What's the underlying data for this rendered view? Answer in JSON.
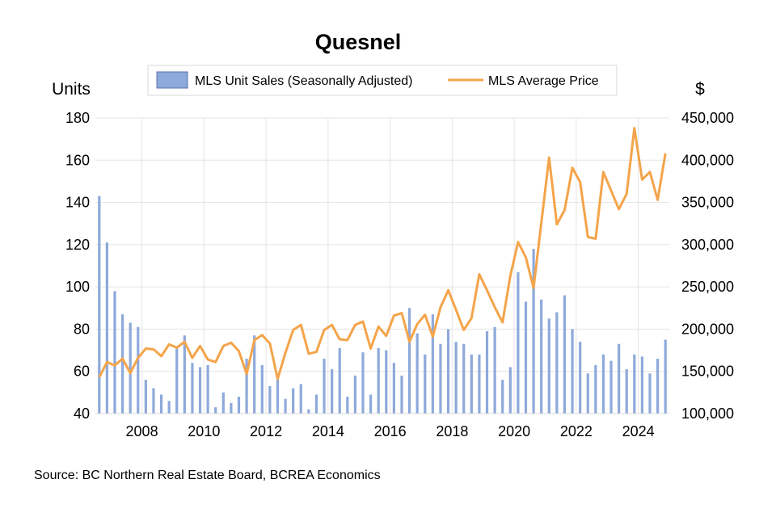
{
  "chart_data": {
    "type": "bar+line",
    "title": "Quesnel",
    "legend": {
      "placement": "top-center",
      "items": [
        {
          "label": "MLS Unit Sales (Seasonally Adjusted)",
          "type": "bar",
          "color": "#8ea9db"
        },
        {
          "label": "MLS Average Price",
          "type": "line",
          "color": "#f4a44a"
        }
      ]
    },
    "left_axis": {
      "label": "Units",
      "min": 40,
      "max": 180,
      "ticks": [
        "180",
        "160",
        "140",
        "120",
        "100",
        "80",
        "60",
        "40"
      ]
    },
    "right_axis": {
      "label": "$",
      "min": 100000,
      "max": 450000,
      "ticks": [
        "450,000",
        "400,000",
        "350,000",
        "300,000",
        "250,000",
        "200,000",
        "150,000",
        "100,000"
      ]
    },
    "x_axis": {
      "range": [
        2006.5,
        2025.0
      ],
      "ticks": [
        "2008",
        "2010",
        "2012",
        "2014",
        "2016",
        "2018",
        "2020",
        "2022",
        "2024"
      ]
    },
    "x": [
      2006.625,
      2006.875,
      2007.125,
      2007.375,
      2007.625,
      2007.875,
      2008.125,
      2008.375,
      2008.625,
      2008.875,
      2009.125,
      2009.375,
      2009.625,
      2009.875,
      2010.125,
      2010.375,
      2010.625,
      2010.875,
      2011.125,
      2011.375,
      2011.625,
      2011.875,
      2012.125,
      2012.375,
      2012.625,
      2012.875,
      2013.125,
      2013.375,
      2013.625,
      2013.875,
      2014.125,
      2014.375,
      2014.625,
      2014.875,
      2015.125,
      2015.375,
      2015.625,
      2015.875,
      2016.125,
      2016.375,
      2016.625,
      2016.875,
      2017.125,
      2017.375,
      2017.625,
      2017.875,
      2018.125,
      2018.375,
      2018.625,
      2018.875,
      2019.125,
      2019.375,
      2019.625,
      2019.875,
      2020.125,
      2020.375,
      2020.625,
      2020.875,
      2021.125,
      2021.375,
      2021.625,
      2021.875,
      2022.125,
      2022.375,
      2022.625,
      2022.875,
      2023.125,
      2023.375,
      2023.625,
      2023.875,
      2024.125,
      2024.375,
      2024.625,
      2024.875
    ],
    "series": [
      {
        "name": "MLS Unit Sales (Seasonally Adjusted)",
        "axis": "left",
        "kind": "bar",
        "values": [
          143,
          121,
          98,
          87,
          83,
          81,
          56,
          52,
          49,
          46,
          71,
          77,
          64,
          62,
          63,
          43,
          50,
          45,
          48,
          66,
          77,
          63,
          53,
          56,
          47,
          52,
          54,
          42,
          49,
          66,
          61,
          71,
          48,
          58,
          69,
          49,
          71,
          70,
          64,
          58,
          90,
          78,
          68,
          87,
          73,
          80,
          74,
          73,
          68,
          68,
          79,
          81,
          56,
          62,
          107,
          93,
          118,
          94,
          85,
          88,
          96,
          80,
          74,
          59,
          63,
          68,
          65,
          73,
          61,
          68,
          67,
          59,
          66,
          75
        ]
      },
      {
        "name": "MLS Average Price",
        "axis": "right",
        "kind": "line",
        "values": [
          143000,
          161000,
          157000,
          165000,
          148000,
          166000,
          177000,
          176000,
          168000,
          182000,
          178000,
          185000,
          166000,
          180000,
          164000,
          161000,
          180000,
          184000,
          174000,
          147000,
          187000,
          193000,
          183000,
          141000,
          172000,
          199000,
          205000,
          171000,
          173000,
          199000,
          205000,
          188000,
          187000,
          205000,
          209000,
          177000,
          203000,
          192000,
          216000,
          219000,
          185000,
          206000,
          217000,
          191000,
          226000,
          246000,
          223000,
          199000,
          213000,
          265000,
          246000,
          226000,
          208000,
          263000,
          303000,
          285000,
          249000,
          326000,
          403000,
          324000,
          341000,
          391000,
          374000,
          309000,
          307000,
          386000,
          364000,
          342000,
          360000,
          438000,
          377000,
          386000,
          353000,
          408000
        ]
      }
    ]
  },
  "footer": {
    "source": "Source:  BC Northern Real Estate Board, BCREA Economics"
  }
}
